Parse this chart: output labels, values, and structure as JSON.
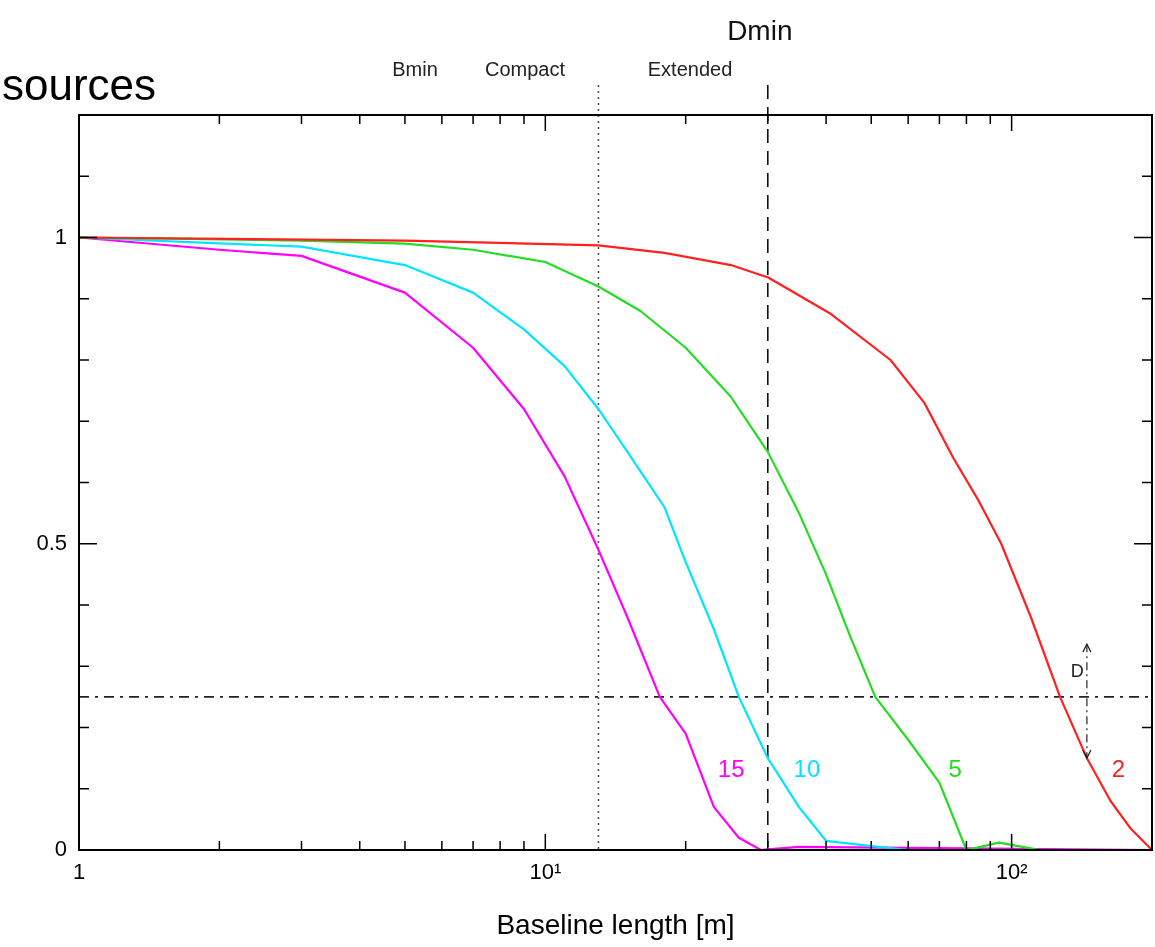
{
  "chart_data": {
    "type": "line",
    "title": "sources",
    "xlabel": "Baseline length [m]",
    "log": "x",
    "grid": false,
    "legend": false,
    "marker": "none",
    "line_style": "solid",
    "xlim": [
      1,
      200
    ],
    "ylim": [
      0,
      1.2
    ],
    "xticks": [
      1,
      {
        "value": 2,
        "label": null
      },
      {
        "value": 3,
        "label": null
      },
      {
        "value": 4,
        "label": null
      },
      {
        "value": 5,
        "label": null
      },
      {
        "value": 6,
        "label": null
      },
      {
        "value": 7,
        "label": null
      },
      {
        "value": 8,
        "label": null
      },
      {
        "value": 9,
        "label": null
      },
      {
        "value": 10,
        "label": "10¹"
      },
      {
        "value": 20,
        "label": null
      },
      {
        "value": 30,
        "label": null
      },
      {
        "value": 40,
        "label": null
      },
      {
        "value": 50,
        "label": null
      },
      {
        "value": 60,
        "label": null
      },
      {
        "value": 70,
        "label": null
      },
      {
        "value": 80,
        "label": null
      },
      {
        "value": 90,
        "label": null
      },
      {
        "value": 100,
        "label": "10²"
      }
    ],
    "yticks": [
      0,
      {
        "value": 0.1,
        "label": null
      },
      {
        "value": 0.2,
        "label": null
      },
      {
        "value": 0.3,
        "label": null
      },
      {
        "value": 0.4,
        "label": null
      },
      0.5,
      {
        "value": 0.6,
        "label": null
      },
      {
        "value": 0.7,
        "label": null
      },
      {
        "value": 0.8,
        "label": null
      },
      {
        "value": 0.9,
        "label": null
      },
      1,
      {
        "value": 1.1,
        "label": null
      }
    ],
    "series": [
      {
        "name": "2",
        "color": "#ff2020",
        "x": [
          1,
          5,
          13,
          18,
          25,
          30,
          41,
          55,
          65,
          75,
          85,
          95,
          110,
          127,
          145,
          163,
          180,
          200
        ],
        "values": [
          1,
          0.995,
          0.987,
          0.975,
          0.955,
          0.935,
          0.875,
          0.8,
          0.73,
          0.64,
          0.57,
          0.5,
          0.38,
          0.25,
          0.15,
          0.08,
          0.035,
          0
        ]
      },
      {
        "name": "5",
        "color": "#22dd22",
        "x": [
          1,
          3,
          5,
          7,
          10,
          13,
          16,
          20,
          25,
          30,
          35,
          40,
          45,
          51,
          60,
          70,
          80,
          94,
          115,
          200
        ],
        "values": [
          1,
          0.995,
          0.99,
          0.98,
          0.96,
          0.92,
          0.88,
          0.82,
          0.74,
          0.65,
          0.55,
          0.45,
          0.35,
          0.25,
          0.18,
          0.11,
          0,
          0.012,
          0,
          0
        ]
      },
      {
        "name": "10",
        "color": "#00e5ff",
        "x": [
          1,
          3,
          5,
          7,
          9,
          11,
          13,
          15,
          18,
          20,
          23,
          26,
          30,
          35,
          40,
          48,
          60,
          200
        ],
        "values": [
          1,
          0.985,
          0.955,
          0.91,
          0.85,
          0.79,
          0.72,
          0.65,
          0.56,
          0.47,
          0.36,
          0.25,
          0.15,
          0.07,
          0.015,
          0.008,
          0,
          0
        ]
      },
      {
        "name": "15",
        "color": "#ff00ff",
        "x": [
          1,
          2,
          3,
          5,
          7,
          9,
          11,
          13,
          15,
          17.6,
          20,
          23,
          26,
          29,
          35,
          200
        ],
        "values": [
          1,
          0.98,
          0.97,
          0.91,
          0.82,
          0.72,
          0.61,
          0.49,
          0.38,
          0.25,
          0.19,
          0.07,
          0.02,
          0,
          0.005,
          0
        ]
      }
    ],
    "ref_lines": [
      {
        "axis": "x",
        "value": 13,
        "label": null,
        "line_style": "dotted",
        "color": "#555555"
      },
      {
        "axis": "x",
        "value": 30,
        "label": "Dmin",
        "line_style": "dashed",
        "color": "#111111"
      },
      {
        "axis": "y",
        "value": 0.25,
        "label": null,
        "line_style": "dashdot",
        "color": "#222222"
      }
    ],
    "annotations": [
      "Bmin",
      "Compact",
      "Extended",
      {
        "text": "D",
        "x": 145,
        "y": 0.15
      }
    ]
  }
}
